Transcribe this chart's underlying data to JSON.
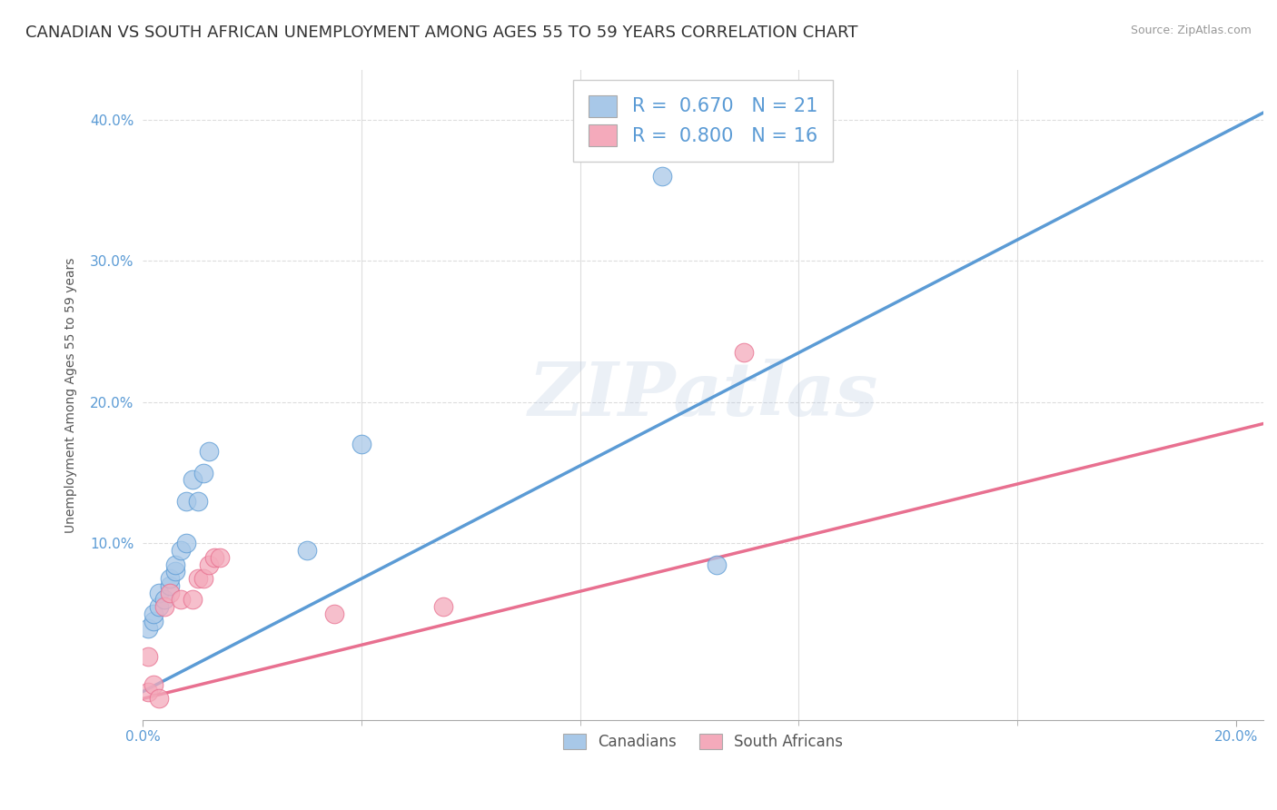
{
  "title": "CANADIAN VS SOUTH AFRICAN UNEMPLOYMENT AMONG AGES 55 TO 59 YEARS CORRELATION CHART",
  "source": "Source: ZipAtlas.com",
  "ylabel": "Unemployment Among Ages 55 to 59 years",
  "xlim": [
    0.0,
    0.205
  ],
  "ylim": [
    -0.025,
    0.435
  ],
  "xticks": [
    0.0,
    0.2
  ],
  "yticks": [
    0.1,
    0.2,
    0.3,
    0.4
  ],
  "xtick_labels": [
    "0.0%",
    "20.0%"
  ],
  "ytick_labels": [
    "10.0%",
    "20.0%",
    "30.0%",
    "40.0%"
  ],
  "canadian_x": [
    0.001,
    0.002,
    0.002,
    0.003,
    0.003,
    0.004,
    0.005,
    0.005,
    0.006,
    0.006,
    0.007,
    0.008,
    0.008,
    0.009,
    0.01,
    0.011,
    0.012,
    0.03,
    0.04,
    0.095,
    0.105
  ],
  "canadian_y": [
    0.04,
    0.045,
    0.05,
    0.055,
    0.065,
    0.06,
    0.07,
    0.075,
    0.08,
    0.085,
    0.095,
    0.1,
    0.13,
    0.145,
    0.13,
    0.15,
    0.165,
    0.095,
    0.17,
    0.36,
    0.085
  ],
  "sa_x": [
    0.001,
    0.001,
    0.002,
    0.003,
    0.004,
    0.005,
    0.007,
    0.009,
    0.01,
    0.011,
    0.012,
    0.013,
    0.014,
    0.035,
    0.055,
    0.11
  ],
  "sa_y": [
    -0.005,
    0.02,
    0.0,
    -0.01,
    0.055,
    0.065,
    0.06,
    0.06,
    0.075,
    0.075,
    0.085,
    0.09,
    0.09,
    0.05,
    0.055,
    0.235
  ],
  "canadian_color": "#A8C8E8",
  "sa_color": "#F4AABB",
  "canadian_line_color": "#5B9BD5",
  "sa_line_color": "#E87090",
  "r_canadian": 0.67,
  "n_canadian": 21,
  "r_sa": 0.8,
  "n_sa": 16,
  "legend_label_canadian": "Canadians",
  "legend_label_sa": "South Africans",
  "background_color": "#FFFFFF",
  "grid_color": "#DDDDDD",
  "watermark": "ZIPatlas",
  "title_fontsize": 13,
  "axis_label_fontsize": 10,
  "tick_fontsize": 11,
  "ca_line_slope": 2.0,
  "ca_line_intercept": -0.005,
  "sa_line_slope": 0.95,
  "sa_line_intercept": -0.01
}
